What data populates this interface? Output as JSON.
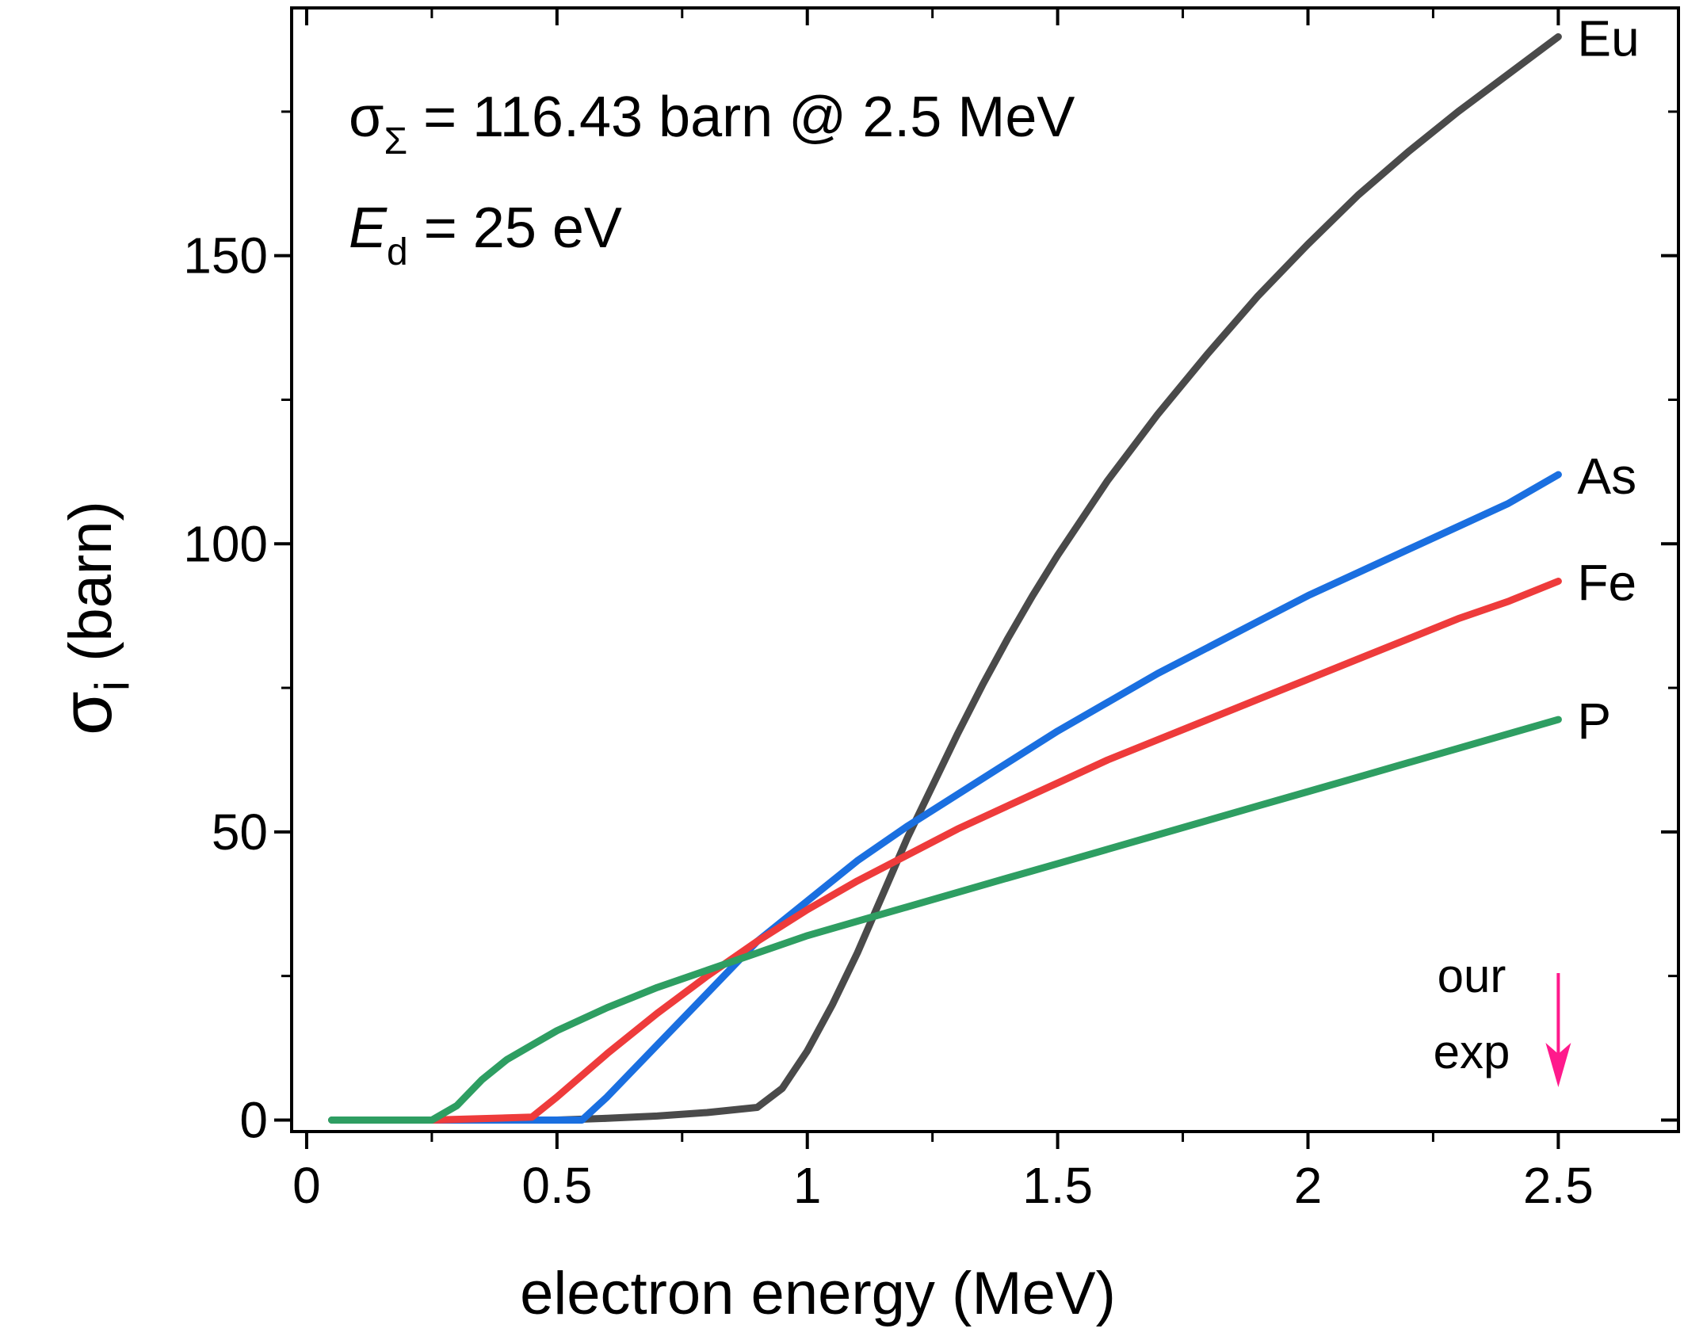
{
  "chart_data": {
    "type": "line",
    "xlabel": "electron energy (MeV)",
    "ylabel": "σ",
    "ylabel_subscript": "i",
    "ylabel_unit": "(barn)",
    "xlim": [
      -0.03,
      2.74
    ],
    "ylim": [
      -2,
      193
    ],
    "x_ticks": [
      0,
      0.5,
      1,
      1.5,
      2,
      2.5
    ],
    "x_tick_labels": [
      "0",
      "0.5",
      "1",
      "1.5",
      "2",
      "2.5"
    ],
    "y_ticks": [
      0,
      50,
      100,
      150
    ],
    "y_tick_labels": [
      "0",
      "50",
      "100",
      "150"
    ],
    "grid": false,
    "annotations": {
      "line1": {
        "symbol": "σ",
        "subscript": "Σ",
        "text": " = 116.43 barn @ 2.5 MeV"
      },
      "line2": {
        "symbol": "E",
        "subscript": "d",
        "text": " = 25 eV"
      }
    },
    "marker": {
      "x": 2.5,
      "label_line1": "our",
      "label_line2": "exp",
      "color": "#ff1a8c"
    },
    "series": [
      {
        "name": "Eu",
        "color": "#4a4a4a",
        "points": [
          [
            0.05,
            0
          ],
          [
            0.5,
            0
          ],
          [
            0.6,
            0.3
          ],
          [
            0.7,
            0.7
          ],
          [
            0.8,
            1.3
          ],
          [
            0.9,
            2.2
          ],
          [
            0.95,
            5.5
          ],
          [
            1.0,
            12
          ],
          [
            1.05,
            20
          ],
          [
            1.1,
            29
          ],
          [
            1.15,
            39
          ],
          [
            1.2,
            49
          ],
          [
            1.25,
            58
          ],
          [
            1.3,
            67
          ],
          [
            1.35,
            75.5
          ],
          [
            1.4,
            83.5
          ],
          [
            1.45,
            91
          ],
          [
            1.5,
            98
          ],
          [
            1.6,
            111
          ],
          [
            1.7,
            122.5
          ],
          [
            1.8,
            133
          ],
          [
            1.9,
            143
          ],
          [
            2.0,
            152
          ],
          [
            2.1,
            160.5
          ],
          [
            2.2,
            168
          ],
          [
            2.3,
            175
          ],
          [
            2.4,
            181.5
          ],
          [
            2.5,
            188
          ]
        ]
      },
      {
        "name": "As",
        "color": "#1a6fe0",
        "points": [
          [
            0.25,
            0
          ],
          [
            0.55,
            0
          ],
          [
            0.6,
            4
          ],
          [
            0.7,
            13
          ],
          [
            0.8,
            22
          ],
          [
            0.9,
            31
          ],
          [
            1.0,
            38
          ],
          [
            1.1,
            45
          ],
          [
            1.2,
            51
          ],
          [
            1.3,
            56.5
          ],
          [
            1.4,
            62
          ],
          [
            1.5,
            67.5
          ],
          [
            1.6,
            72.5
          ],
          [
            1.7,
            77.5
          ],
          [
            1.8,
            82
          ],
          [
            1.9,
            86.5
          ],
          [
            2.0,
            91
          ],
          [
            2.1,
            95
          ],
          [
            2.2,
            99
          ],
          [
            2.3,
            103
          ],
          [
            2.4,
            107
          ],
          [
            2.5,
            112
          ]
        ]
      },
      {
        "name": "Fe",
        "color": "#ee3b3b",
        "points": [
          [
            0.25,
            0
          ],
          [
            0.45,
            0.5
          ],
          [
            0.5,
            4
          ],
          [
            0.6,
            11.5
          ],
          [
            0.7,
            18.5
          ],
          [
            0.8,
            25
          ],
          [
            0.9,
            31
          ],
          [
            1.0,
            36.5
          ],
          [
            1.1,
            41.5
          ],
          [
            1.2,
            46
          ],
          [
            1.3,
            50.5
          ],
          [
            1.4,
            54.5
          ],
          [
            1.5,
            58.5
          ],
          [
            1.6,
            62.5
          ],
          [
            1.7,
            66
          ],
          [
            1.8,
            69.5
          ],
          [
            1.9,
            73
          ],
          [
            2.0,
            76.5
          ],
          [
            2.1,
            80
          ],
          [
            2.2,
            83.5
          ],
          [
            2.3,
            87
          ],
          [
            2.4,
            90
          ],
          [
            2.5,
            93.5
          ]
        ]
      },
      {
        "name": "P",
        "color": "#2e9e62",
        "points": [
          [
            0.05,
            0
          ],
          [
            0.25,
            0
          ],
          [
            0.3,
            2.5
          ],
          [
            0.35,
            7
          ],
          [
            0.4,
            10.5
          ],
          [
            0.45,
            13
          ],
          [
            0.5,
            15.5
          ],
          [
            0.6,
            19.5
          ],
          [
            0.7,
            23
          ],
          [
            0.8,
            26
          ],
          [
            0.9,
            29
          ],
          [
            1.0,
            32
          ],
          [
            1.1,
            34.5
          ],
          [
            1.2,
            37
          ],
          [
            1.3,
            39.5
          ],
          [
            1.4,
            42
          ],
          [
            1.5,
            44.5
          ],
          [
            1.6,
            47
          ],
          [
            1.7,
            49.5
          ],
          [
            1.8,
            52
          ],
          [
            1.9,
            54.5
          ],
          [
            2.0,
            57
          ],
          [
            2.1,
            59.5
          ],
          [
            2.2,
            62
          ],
          [
            2.3,
            64.5
          ],
          [
            2.4,
            67
          ],
          [
            2.5,
            69.5
          ]
        ]
      }
    ]
  }
}
